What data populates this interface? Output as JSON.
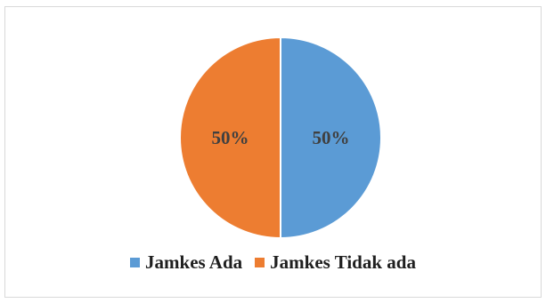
{
  "chart_data": {
    "type": "pie",
    "title": "",
    "slices": [
      {
        "label": "Jamkes Ada",
        "value": 50,
        "display": "50%",
        "color": "#5b9bd5"
      },
      {
        "label": "Jamkes Tidak ada",
        "value": 50,
        "display": "50%",
        "color": "#ed7d31"
      }
    ],
    "legend_position": "bottom",
    "start_angle_degrees": 0,
    "direction": "clockwise"
  }
}
